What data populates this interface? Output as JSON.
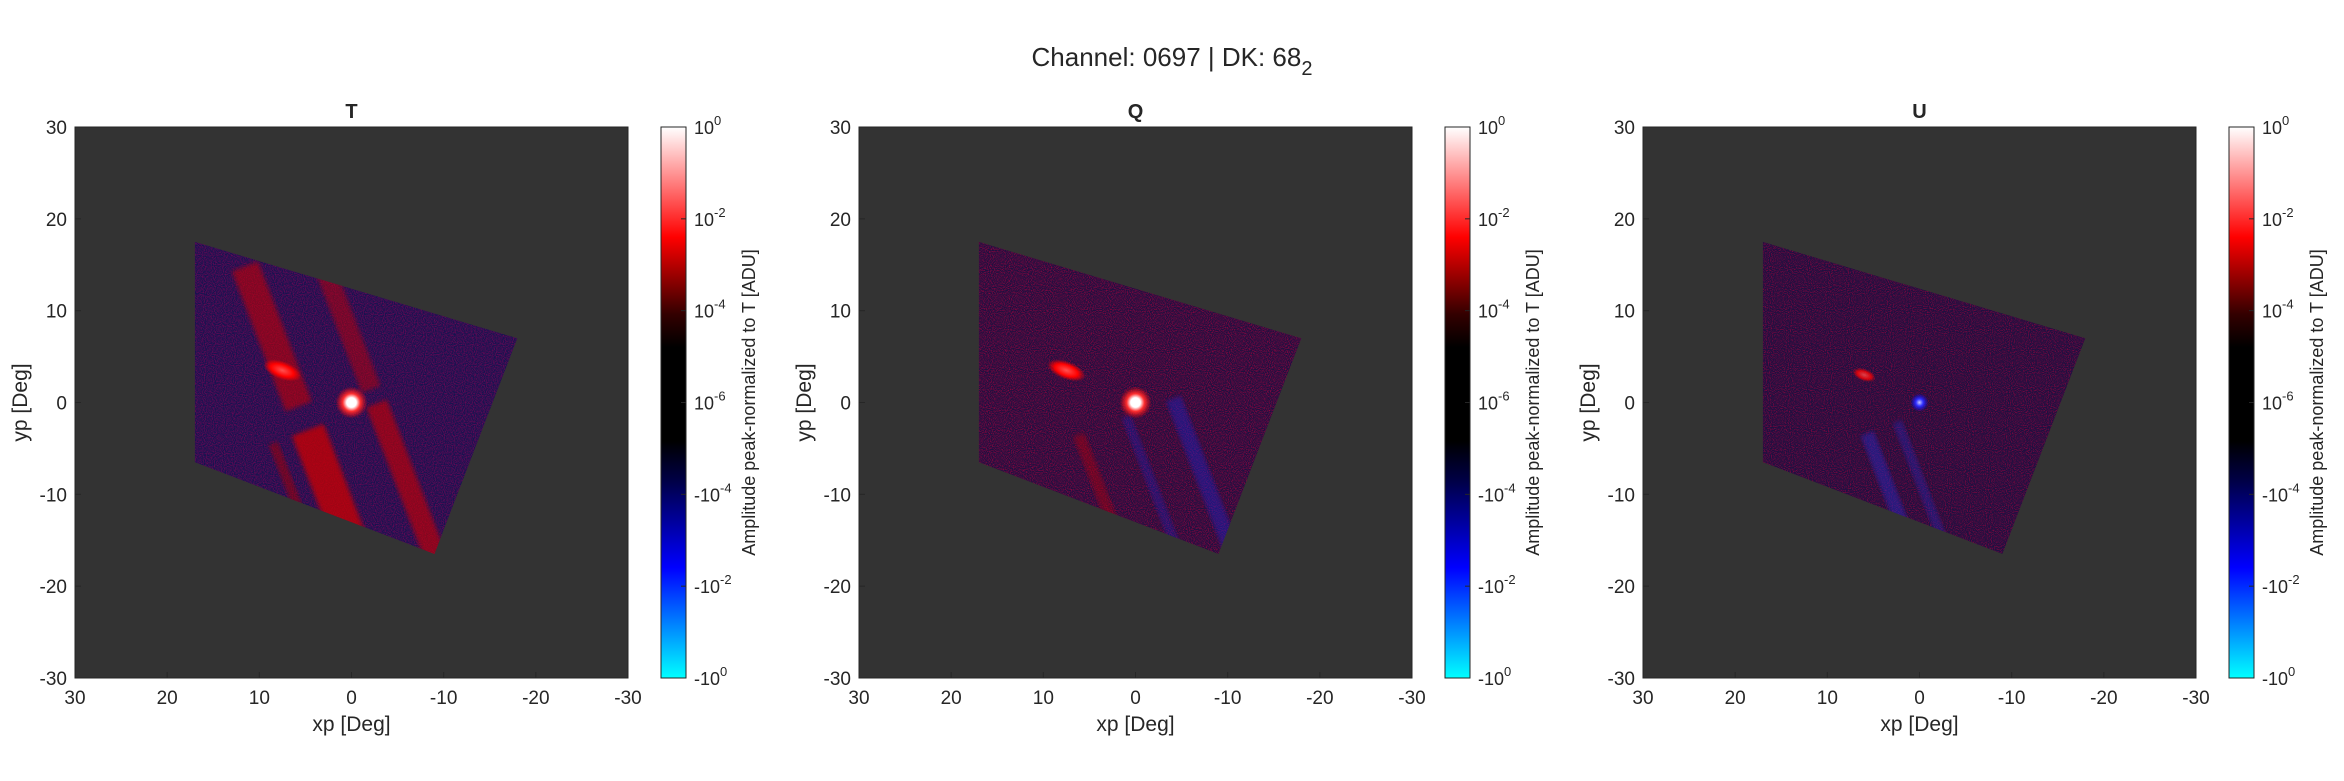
{
  "figure": {
    "title_prefix": "Channel: 0697 | DK: 68",
    "title_subscript": "2"
  },
  "colors": {
    "map_background": "#333333",
    "colormap_negative": [
      "#00ffff",
      "#0000ff",
      "#000033",
      "#000000"
    ],
    "colormap_positive": [
      "#000000",
      "#330000",
      "#ff0000",
      "#ffffff"
    ]
  },
  "chart_data": [
    {
      "type": "heatmap",
      "title": "T",
      "xlabel": "xp [Deg]",
      "ylabel": "yp [Deg]",
      "xlim": [
        30,
        -30
      ],
      "ylim": [
        -30,
        30
      ],
      "xticks": [
        30,
        20,
        10,
        0,
        -10,
        -20,
        -30
      ],
      "yticks": [
        30,
        20,
        10,
        0,
        -10,
        -20,
        -30
      ],
      "colorbar": {
        "label": "Amplitude peak-normalized to T [ADU]",
        "ticks": [
          {
            "base": "10",
            "exp": "0"
          },
          {
            "base": "10",
            "exp": "-2"
          },
          {
            "base": "10",
            "exp": "-4"
          },
          {
            "base": "10",
            "exp": "-6"
          },
          {
            "base": "-10",
            "exp": "-4"
          },
          {
            "base": "-10",
            "exp": "-2"
          },
          {
            "base": "-10",
            "exp": "0"
          }
        ]
      },
      "map": {
        "footprint_corners": [
          [
            17,
            17.5
          ],
          [
            -18,
            7
          ],
          [
            -9,
            -16.5
          ],
          [
            17,
            -6.5
          ]
        ],
        "background_sign": "negative",
        "main_beam": {
          "x": 0,
          "y": 0,
          "peak": 1.0
        },
        "sidelobe": {
          "x": 7.5,
          "y": 3.5,
          "level": 0.01
        },
        "crosstalk_streaks": "positive-along-x≈6 and x≈-2"
      }
    },
    {
      "type": "heatmap",
      "title": "Q",
      "xlabel": "xp [Deg]",
      "ylabel": "yp [Deg]",
      "xlim": [
        30,
        -30
      ],
      "ylim": [
        -30,
        30
      ],
      "xticks": [
        30,
        20,
        10,
        0,
        -10,
        -20,
        -30
      ],
      "yticks": [
        30,
        20,
        10,
        0,
        -10,
        -20,
        -30
      ],
      "colorbar": {
        "label": "Amplitude peak-normalized to T [ADU]",
        "ticks": [
          {
            "base": "10",
            "exp": "0"
          },
          {
            "base": "10",
            "exp": "-2"
          },
          {
            "base": "10",
            "exp": "-4"
          },
          {
            "base": "10",
            "exp": "-6"
          },
          {
            "base": "-10",
            "exp": "-4"
          },
          {
            "base": "-10",
            "exp": "-2"
          },
          {
            "base": "-10",
            "exp": "0"
          }
        ]
      },
      "map": {
        "footprint_corners": [
          [
            17,
            17.5
          ],
          [
            -18,
            7
          ],
          [
            -9,
            -16.5
          ],
          [
            17,
            -6.5
          ]
        ],
        "background_sign": "mixed",
        "main_beam": {
          "x": 0,
          "y": 0,
          "peak": 0.5
        },
        "sidelobe": {
          "x": 7.5,
          "y": 3.5,
          "level": 0.005
        }
      }
    },
    {
      "type": "heatmap",
      "title": "U",
      "xlabel": "xp [Deg]",
      "ylabel": "yp [Deg]",
      "xlim": [
        30,
        -30
      ],
      "ylim": [
        -30,
        30
      ],
      "xticks": [
        30,
        20,
        10,
        0,
        -10,
        -20,
        -30
      ],
      "yticks": [
        30,
        20,
        10,
        0,
        -10,
        -20,
        -30
      ],
      "colorbar": {
        "label": "Amplitude peak-normalized to T [ADU]",
        "ticks": [
          {
            "base": "10",
            "exp": "0"
          },
          {
            "base": "10",
            "exp": "-2"
          },
          {
            "base": "10",
            "exp": "-4"
          },
          {
            "base": "10",
            "exp": "-6"
          },
          {
            "base": "-10",
            "exp": "-4"
          },
          {
            "base": "-10",
            "exp": "-2"
          },
          {
            "base": "-10",
            "exp": "0"
          }
        ]
      },
      "map": {
        "footprint_corners": [
          [
            17,
            17.5
          ],
          [
            -18,
            7
          ],
          [
            -9,
            -16.5
          ],
          [
            17,
            -6.5
          ]
        ],
        "background_sign": "mixed",
        "main_beam": {
          "x": 0,
          "y": 0,
          "peak": -0.001
        },
        "sidelobe": {
          "x": 6,
          "y": 3,
          "level": 0.0005
        }
      }
    }
  ]
}
